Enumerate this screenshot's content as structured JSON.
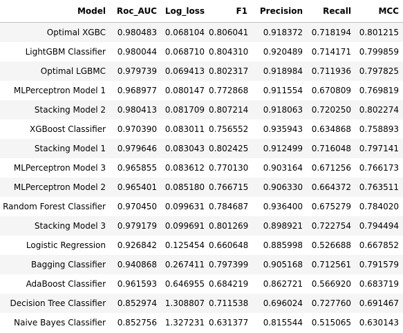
{
  "table": {
    "columns": [
      "Model",
      "Roc_AUC",
      "Log_loss",
      "F1",
      "Precision",
      "Recall",
      "MCC"
    ],
    "rows": [
      [
        "Optimal XGBC",
        "0.980483",
        "0.068104",
        "0.806041",
        "0.918372",
        "0.718194",
        "0.801215"
      ],
      [
        "LightGBM Classifier",
        "0.980044",
        "0.068710",
        "0.804310",
        "0.920489",
        "0.714171",
        "0.799859"
      ],
      [
        "Optimal LGBMC",
        "0.979739",
        "0.069413",
        "0.802317",
        "0.918984",
        "0.711936",
        "0.797825"
      ],
      [
        "MLPerceptron Model 1",
        "0.968977",
        "0.080147",
        "0.772868",
        "0.911554",
        "0.670809",
        "0.769819"
      ],
      [
        "Stacking Model 2",
        "0.980413",
        "0.081709",
        "0.807214",
        "0.918063",
        "0.720250",
        "0.802274"
      ],
      [
        "XGBoost Classifier",
        "0.970390",
        "0.083011",
        "0.756552",
        "0.935943",
        "0.634868",
        "0.758893"
      ],
      [
        "Stacking Model 1",
        "0.979646",
        "0.083043",
        "0.802425",
        "0.912499",
        "0.716048",
        "0.797141"
      ],
      [
        "MLPerceptron Model 3",
        "0.965855",
        "0.083612",
        "0.770130",
        "0.903164",
        "0.671256",
        "0.766173"
      ],
      [
        "MLPerceptron Model 2",
        "0.965401",
        "0.085180",
        "0.766715",
        "0.906330",
        "0.664372",
        "0.763511"
      ],
      [
        "Random Forest Classifier",
        "0.970450",
        "0.099631",
        "0.784687",
        "0.936400",
        "0.675279",
        "0.784020"
      ],
      [
        "Stacking Model 3",
        "0.979179",
        "0.099691",
        "0.801269",
        "0.898921",
        "0.722754",
        "0.794494"
      ],
      [
        "Logistic Regression",
        "0.926842",
        "0.125454",
        "0.660648",
        "0.885998",
        "0.526688",
        "0.667852"
      ],
      [
        "Bagging Classifier",
        "0.940868",
        "0.267411",
        "0.797399",
        "0.905168",
        "0.712561",
        "0.791579"
      ],
      [
        "AdaBoost Classifier",
        "0.961593",
        "0.646955",
        "0.684219",
        "0.862721",
        "0.566920",
        "0.683719"
      ],
      [
        "Decision Tree Classifier",
        "0.852974",
        "1.308807",
        "0.711538",
        "0.696024",
        "0.727760",
        "0.691467"
      ],
      [
        "Naive Bayes Classifier",
        "0.852756",
        "1.327231",
        "0.631377",
        "0.815544",
        "0.515065",
        "0.630143"
      ]
    ],
    "row_stripe_color": "#f5f5f5",
    "header_border_color": "#bdbdbd"
  }
}
